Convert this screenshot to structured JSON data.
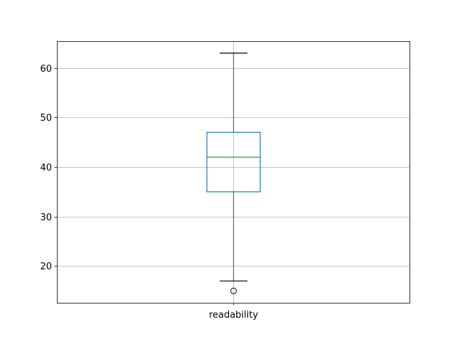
{
  "chart_data": {
    "type": "box",
    "categories": [
      "readability"
    ],
    "boxes": [
      {
        "category": "readability",
        "whisker_low": 17,
        "q1": 35,
        "median": 42,
        "q3": 47,
        "whisker_high": 63,
        "outliers": [
          15
        ]
      }
    ],
    "ylim": [
      12.6,
      65.4
    ],
    "yticks": [
      20,
      30,
      40,
      50,
      60
    ],
    "ytick_labels": [
      "20",
      "30",
      "40",
      "50",
      "60"
    ],
    "grid": true,
    "colors": {
      "box": "#1f77b4",
      "median": "#2ca02c",
      "whisker_cap": "#000000",
      "grid": "#b0b0b0"
    }
  }
}
